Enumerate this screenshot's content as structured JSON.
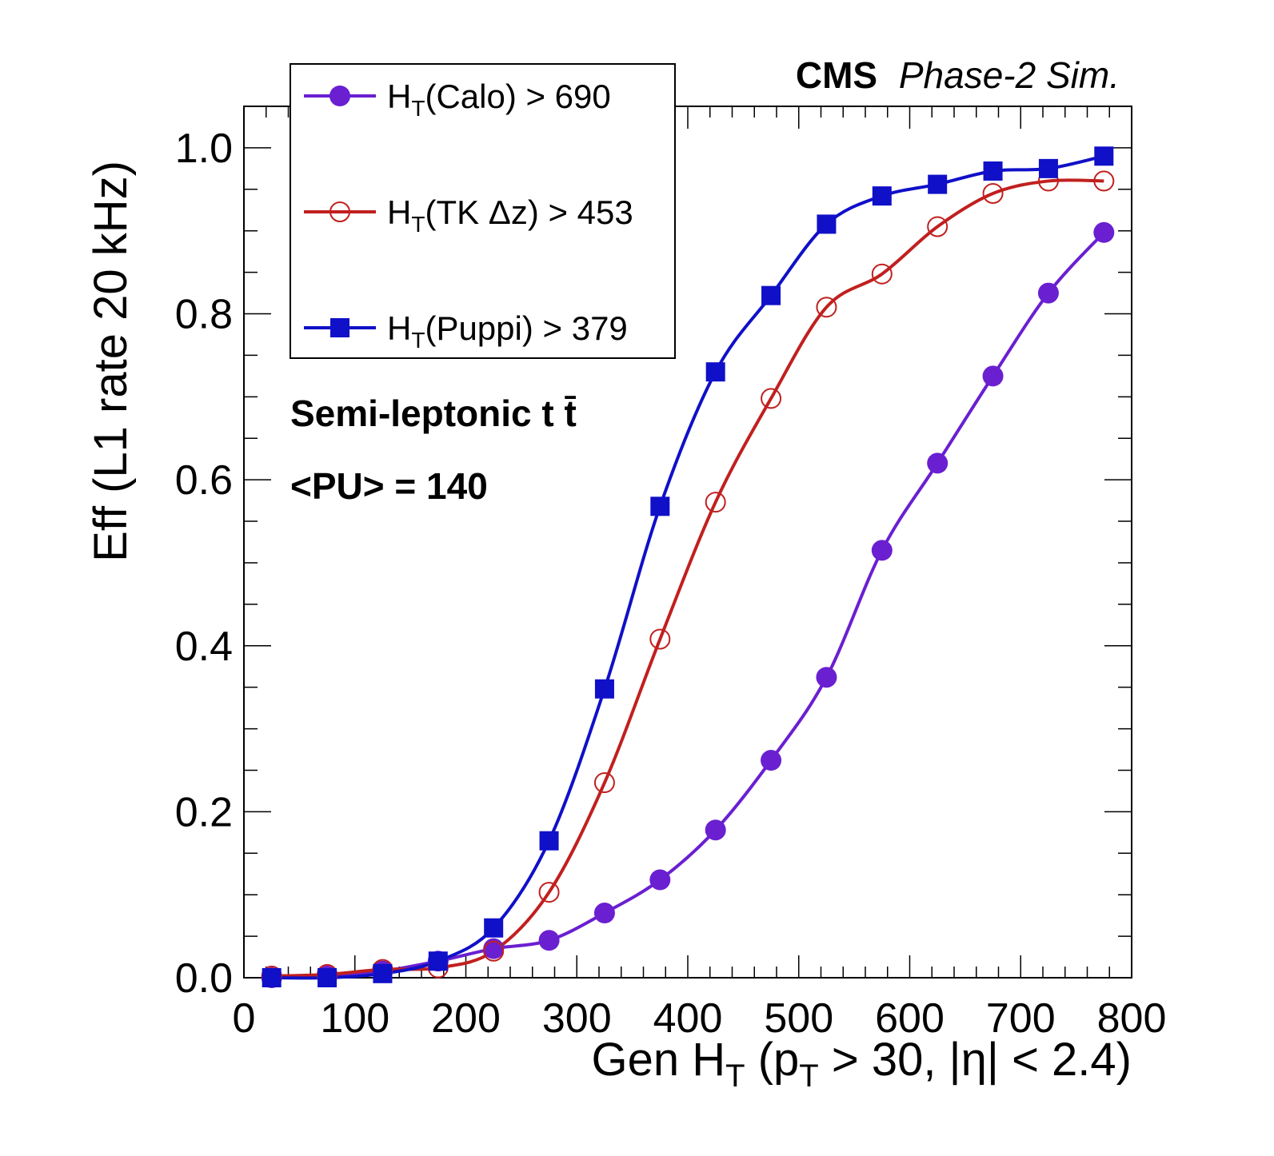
{
  "chart_data": {
    "type": "line",
    "title_bold": "CMS",
    "title_italic": "Phase-2 Sim.",
    "xlabel": {
      "prefix": "Gen H",
      "sub": "T",
      "mid": " (p",
      "sub2": "T",
      "suffix": " > 30, |η| < 2.4)"
    },
    "ylabel": "Eff (L1 rate 20 kHz)",
    "xlim": [
      0,
      800
    ],
    "ylim": [
      0,
      1.05
    ],
    "xticks": [
      0,
      100,
      200,
      300,
      400,
      500,
      600,
      700,
      800
    ],
    "xtick_labels": [
      "0",
      "100",
      "200",
      "300",
      "400",
      "500",
      "600",
      "700",
      "800"
    ],
    "yticks": [
      0.0,
      0.2,
      0.4,
      0.6,
      0.8,
      1.0
    ],
    "ytick_labels": [
      "0.0",
      "0.2",
      "0.4",
      "0.6",
      "0.8",
      "1.0"
    ],
    "annotations": {
      "process": "Semi-leptonic t",
      "process_tbar": "t̄",
      "pileup": "<PU> = 140"
    },
    "series": [
      {
        "name": "HT(Calo) > 690",
        "legend_prefix": "H",
        "legend_sub": "T",
        "legend_suffix": "(Calo) > 690",
        "color": "#6a1fd1",
        "marker": "circle-filled",
        "x": [
          25,
          75,
          125,
          175,
          225,
          275,
          325,
          375,
          425,
          475,
          525,
          575,
          625,
          675,
          725,
          775
        ],
        "y": [
          0.0,
          0.002,
          0.008,
          0.02,
          0.035,
          0.045,
          0.078,
          0.118,
          0.178,
          0.262,
          0.362,
          0.515,
          0.62,
          0.725,
          0.825,
          0.898
        ]
      },
      {
        "name": "HT(TK Δz) > 453",
        "legend_prefix": "H",
        "legend_sub": "T",
        "legend_suffix": "(TK Δz) > 453",
        "color": "#c0201f",
        "marker": "circle-open",
        "x": [
          25,
          75,
          125,
          175,
          225,
          275,
          325,
          375,
          425,
          475,
          525,
          575,
          625,
          675,
          725,
          775
        ],
        "y": [
          0.002,
          0.004,
          0.01,
          0.012,
          0.032,
          0.103,
          0.235,
          0.408,
          0.573,
          0.698,
          0.808,
          0.848,
          0.905,
          0.945,
          0.96,
          0.96
        ]
      },
      {
        "name": "HT(Puppi) > 379",
        "legend_prefix": "H",
        "legend_sub": "T",
        "legend_suffix": "(Puppi) > 379",
        "color": "#1010c8",
        "marker": "square-filled",
        "x": [
          25,
          75,
          125,
          175,
          225,
          275,
          325,
          375,
          425,
          475,
          525,
          575,
          625,
          675,
          725,
          775
        ],
        "y": [
          0.0,
          0.0,
          0.005,
          0.02,
          0.06,
          0.165,
          0.348,
          0.568,
          0.73,
          0.822,
          0.908,
          0.942,
          0.956,
          0.972,
          0.975,
          0.99
        ]
      }
    ]
  }
}
